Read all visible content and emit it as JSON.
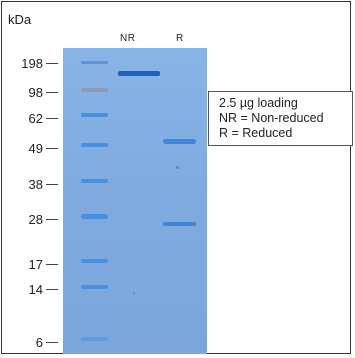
{
  "figure": {
    "unit_label": "kDa",
    "lanes": [
      "NR",
      "R"
    ],
    "markers": [
      "198",
      "98",
      "62",
      "49",
      "38",
      "28",
      "17",
      "14",
      "6"
    ],
    "legend": {
      "line1": "2.5 µg loading",
      "line2": "NR = Non-reduced",
      "line3": "R = Reduced"
    },
    "colors": {
      "gel": "#7fabe0",
      "band_dark": "#1f5fc2",
      "band": "#3f86dc"
    }
  }
}
